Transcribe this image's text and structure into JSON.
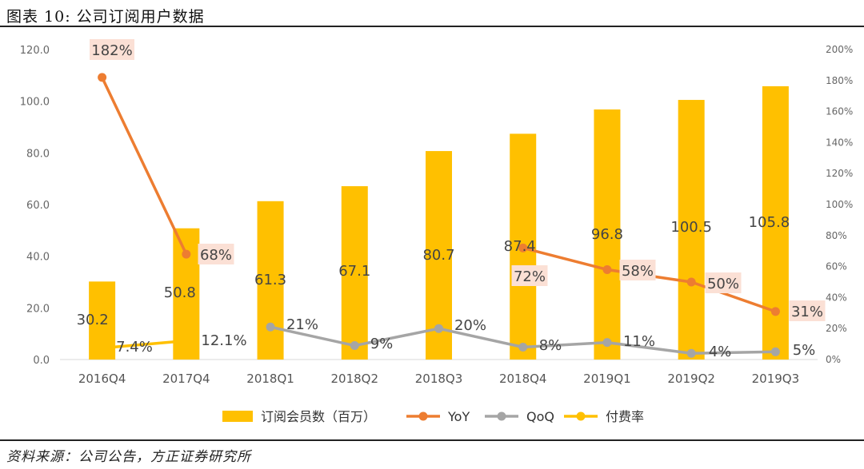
{
  "figure_title": "图表 10:  公司订阅用户数据",
  "source_note": "资料来源：公司公告，方正证券研究所",
  "colors": {
    "bar": "#FFC000",
    "yoy": "#ED7D31",
    "qoq": "#A5A5A5",
    "rate": "#FFC000",
    "label_box": "#FBE0D5"
  },
  "chart_data": {
    "type": "bar",
    "categories": [
      "2016Q4",
      "2017Q4",
      "2018Q1",
      "2018Q2",
      "2018Q3",
      "2018Q4",
      "2019Q1",
      "2019Q2",
      "2019Q3"
    ],
    "left_axis": {
      "ticks": [
        "0.0",
        "20.0",
        "40.0",
        "60.0",
        "80.0",
        "100.0",
        "120.0"
      ],
      "ylim": [
        0,
        120
      ]
    },
    "right_axis": {
      "ticks": [
        "0%",
        "20%",
        "40%",
        "60%",
        "80%",
        "100%",
        "120%",
        "140%",
        "160%",
        "180%",
        "200%"
      ],
      "ylim": [
        0,
        200
      ]
    },
    "series": [
      {
        "name": "订阅会员数（百万）",
        "type": "bar",
        "values": [
          30.2,
          50.8,
          61.3,
          67.1,
          80.7,
          87.4,
          96.8,
          100.5,
          105.8
        ],
        "labels": [
          "30.2",
          "50.8",
          "61.3",
          "67.1",
          "80.7",
          "87.4",
          "96.8",
          "100.5",
          "105.8"
        ]
      },
      {
        "name": "YoY",
        "type": "line",
        "axis": "right",
        "points": [
          {
            "i": 0,
            "v": 182,
            "label": "182%"
          },
          {
            "i": 1,
            "v": 68,
            "label": "68%"
          },
          {
            "i": 5,
            "v": 72,
            "label": "72%"
          },
          {
            "i": 6,
            "v": 58,
            "label": "58%"
          },
          {
            "i": 7,
            "v": 50,
            "label": "50%"
          },
          {
            "i": 8,
            "v": 31,
            "label": "31%"
          }
        ]
      },
      {
        "name": "QoQ",
        "type": "line",
        "axis": "right",
        "points": [
          {
            "i": 2,
            "v": 21,
            "label": "21%"
          },
          {
            "i": 3,
            "v": 9,
            "label": "9%"
          },
          {
            "i": 4,
            "v": 20,
            "label": "20%"
          },
          {
            "i": 5,
            "v": 8,
            "label": "8%"
          },
          {
            "i": 6,
            "v": 11,
            "label": "11%"
          },
          {
            "i": 7,
            "v": 4,
            "label": "4%"
          },
          {
            "i": 8,
            "v": 5,
            "label": "5%"
          }
        ]
      },
      {
        "name": "付费率",
        "type": "line",
        "axis": "right",
        "points": [
          {
            "i": 0,
            "v": 7.4,
            "label": "7.4%"
          },
          {
            "i": 1,
            "v": 12.1,
            "label": "12.1%"
          }
        ]
      }
    ],
    "legend": [
      "订阅会员数（百万）",
      "YoY",
      "QoQ",
      "付费率"
    ],
    "legend_position": "bottom"
  }
}
